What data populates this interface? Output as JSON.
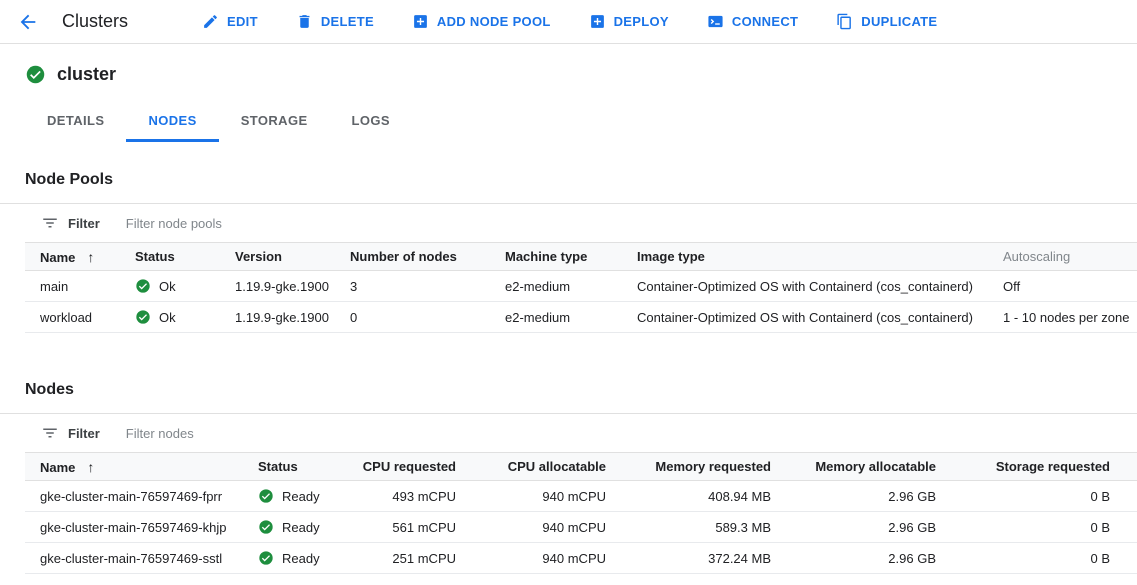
{
  "toolbar": {
    "title": "Clusters",
    "actions": [
      {
        "label": "EDIT",
        "icon": "edit-icon"
      },
      {
        "label": "DELETE",
        "icon": "delete-icon"
      },
      {
        "label": "ADD NODE POOL",
        "icon": "add-box-icon"
      },
      {
        "label": "DEPLOY",
        "icon": "add-box-icon"
      },
      {
        "label": "CONNECT",
        "icon": "terminal-icon"
      },
      {
        "label": "DUPLICATE",
        "icon": "duplicate-icon"
      }
    ]
  },
  "cluster": {
    "name": "cluster",
    "status": "ok"
  },
  "tabs": [
    {
      "label": "DETAILS",
      "active": false
    },
    {
      "label": "NODES",
      "active": true
    },
    {
      "label": "STORAGE",
      "active": false
    },
    {
      "label": "LOGS",
      "active": false
    }
  ],
  "node_pools": {
    "heading": "Node Pools",
    "filter_label": "Filter",
    "filter_placeholder": "Filter node pools",
    "sort_arrow": "↑",
    "columns": [
      "Name",
      "Status",
      "Version",
      "Number of nodes",
      "Machine type",
      "Image type",
      "Autoscaling"
    ],
    "rows": [
      [
        "main",
        "Ok",
        "1.19.9-gke.1900",
        "3",
        "e2-medium",
        "Container-Optimized OS with Containerd (cos_containerd)",
        "Off"
      ],
      [
        "workload",
        "Ok",
        "1.19.9-gke.1900",
        "0",
        "e2-medium",
        "Container-Optimized OS with Containerd (cos_containerd)",
        "1 - 10 nodes per zone"
      ]
    ]
  },
  "nodes": {
    "heading": "Nodes",
    "filter_label": "Filter",
    "filter_placeholder": "Filter nodes",
    "sort_arrow": "↑",
    "columns": [
      "Name",
      "Status",
      "CPU requested",
      "CPU allocatable",
      "Memory requested",
      "Memory allocatable",
      "Storage requested"
    ],
    "rows": [
      [
        "gke-cluster-main-76597469-fprr",
        "Ready",
        "493 mCPU",
        "940 mCPU",
        "408.94 MB",
        "2.96 GB",
        "0 B"
      ],
      [
        "gke-cluster-main-76597469-khjp",
        "Ready",
        "561 mCPU",
        "940 mCPU",
        "589.3 MB",
        "2.96 GB",
        "0 B"
      ],
      [
        "gke-cluster-main-76597469-sstl",
        "Ready",
        "251 mCPU",
        "940 mCPU",
        "372.24 MB",
        "2.96 GB",
        "0 B"
      ]
    ]
  },
  "colors": {
    "accent": "#1a73e8",
    "success": "#1e8e3e"
  }
}
